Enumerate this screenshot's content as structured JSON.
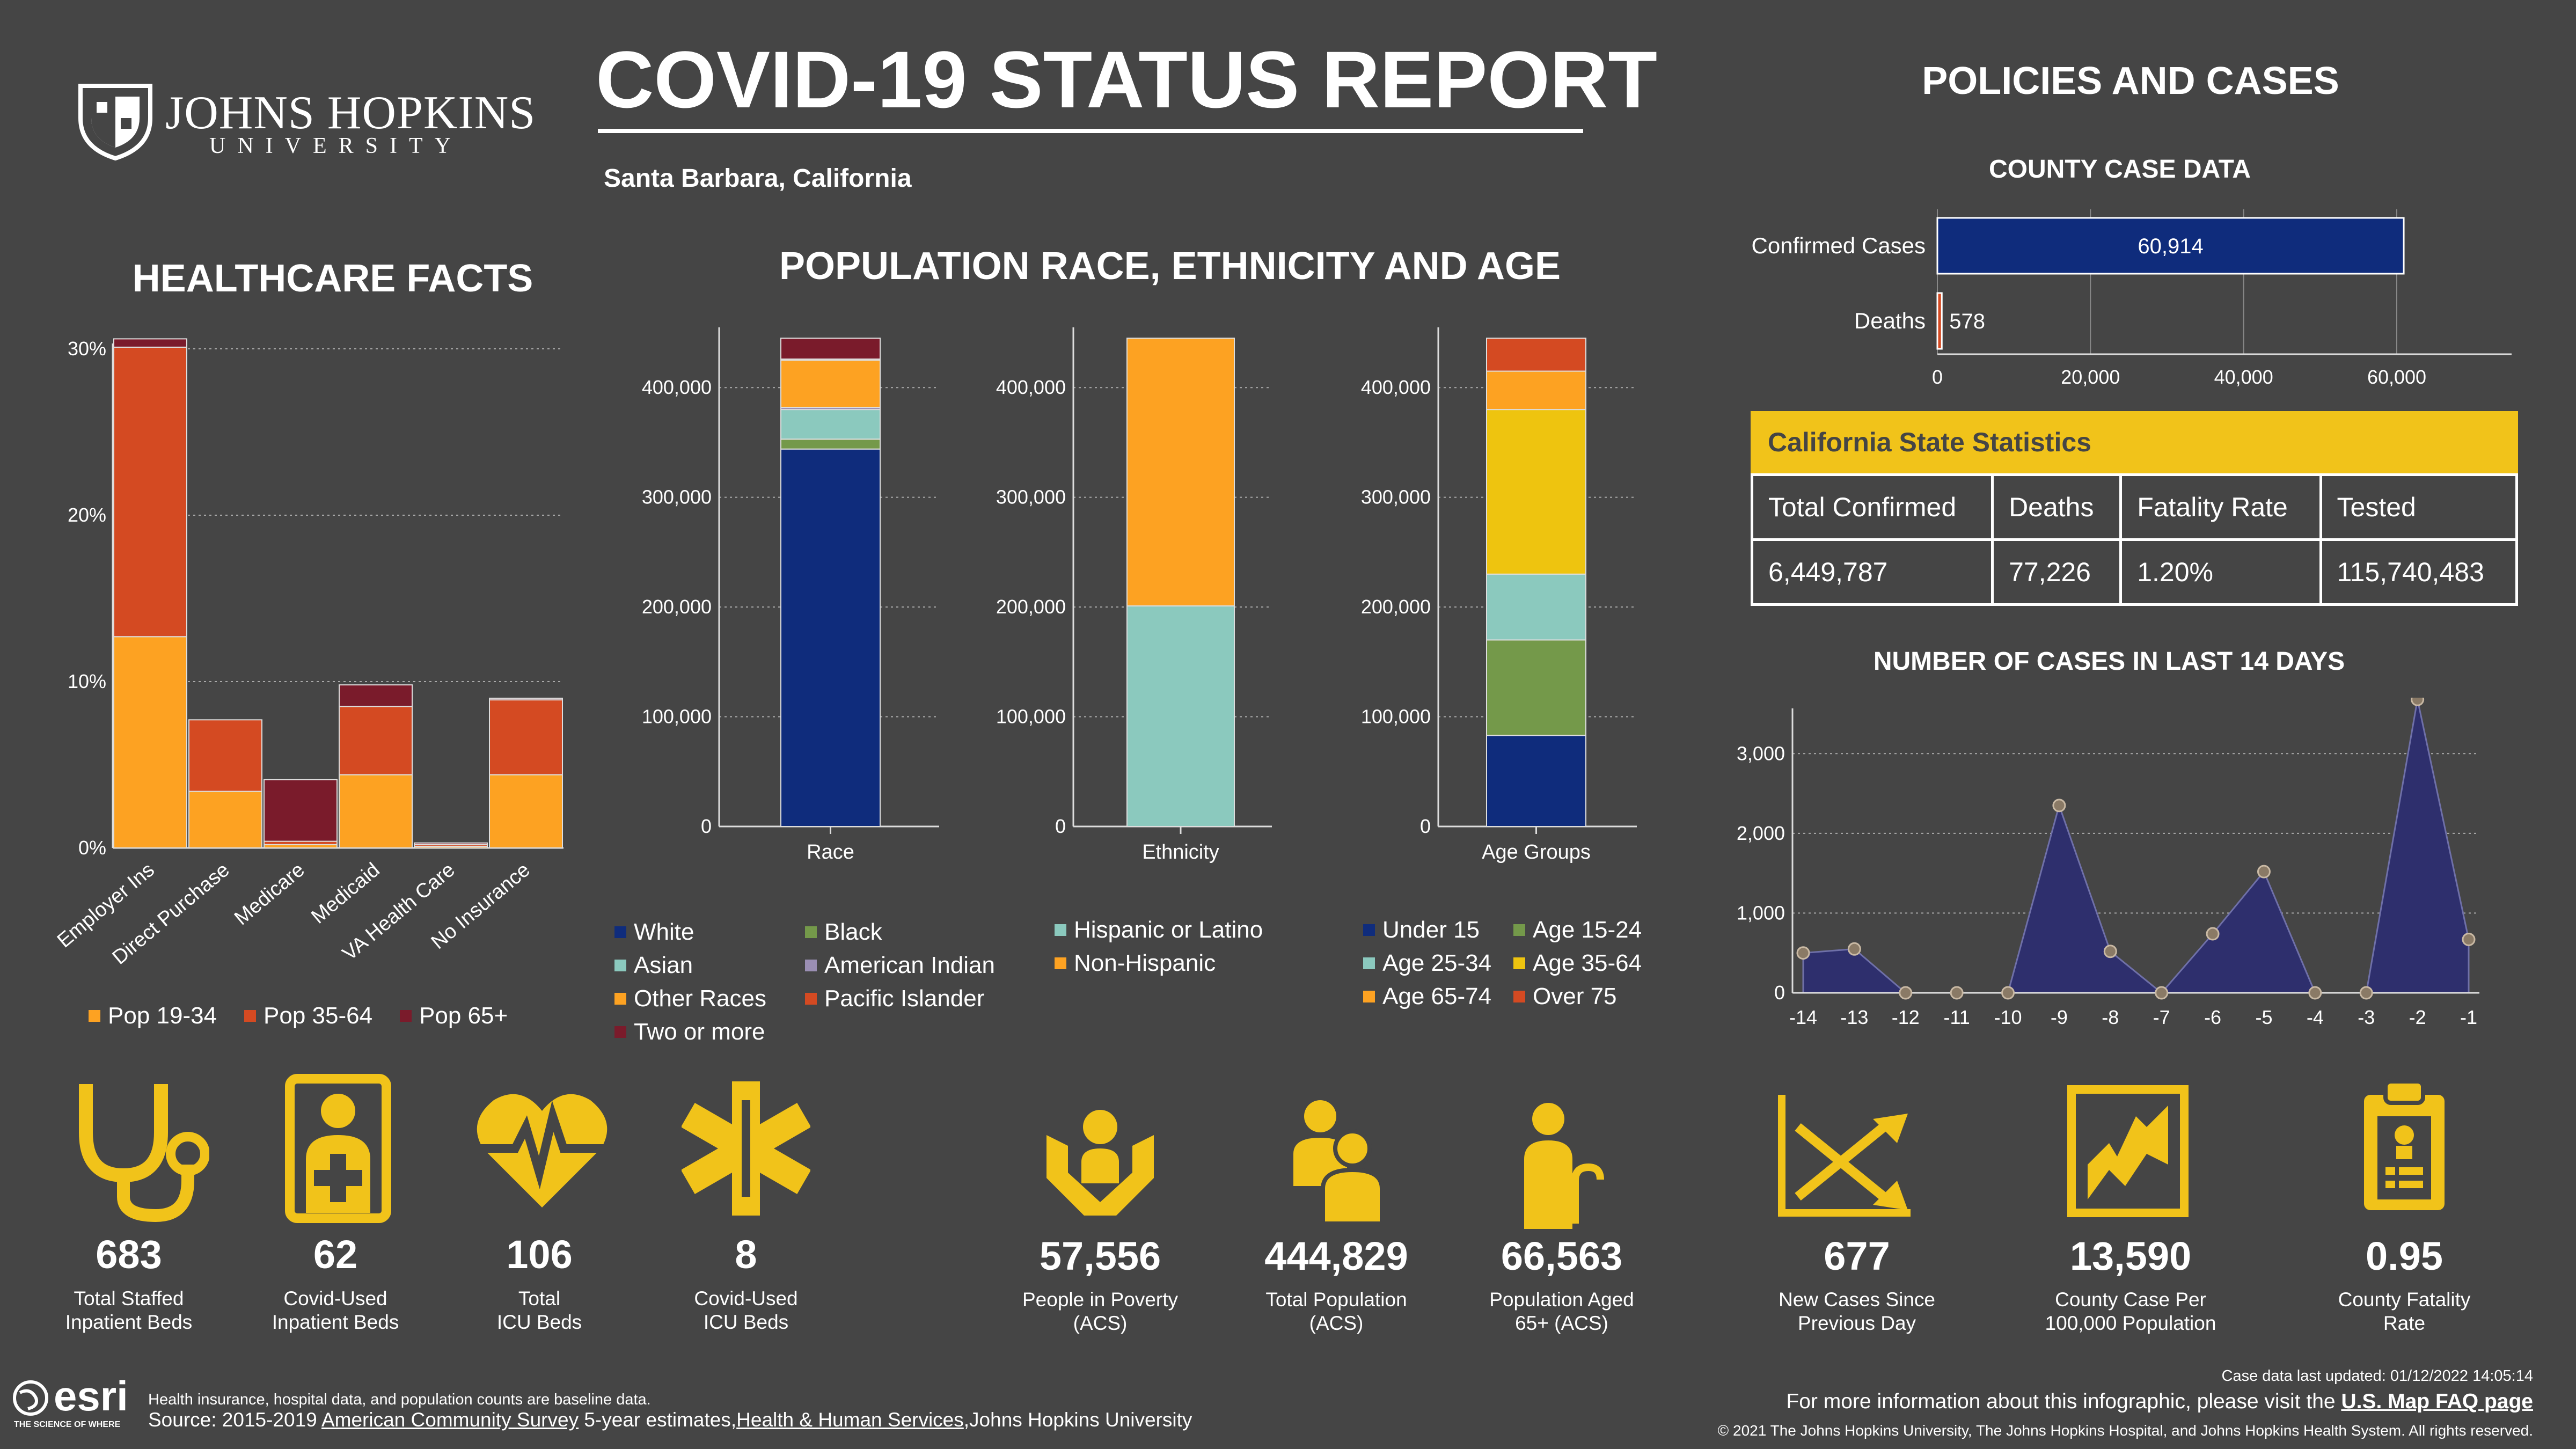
{
  "header": {
    "university_line1": "JOHNS HOPKINS",
    "university_line2": "UNIVERSITY",
    "title": "COVID-19 STATUS REPORT",
    "location": "Santa Barbara, California",
    "policies_title": "POLICIES AND CASES"
  },
  "colors": {
    "background": "#454545",
    "accent": "#f1c31a",
    "navy": "#0f2c7c",
    "orange": "#fda222",
    "red_orange": "#d44a22",
    "maroon": "#7a1b2b",
    "teal": "#8bc9be",
    "green": "#74994a",
    "yellow": "#eec40f",
    "purple": "#9b8fb4",
    "chart_navy": "#2e2f6d"
  },
  "healthcare": {
    "title": "HEALTHCARE FACTS",
    "chart_data": {
      "type": "bar",
      "stacked": true,
      "categories": [
        "Employer Ins",
        "Direct Purchase",
        "Medicare",
        "Medicaid",
        "VA Health Care",
        "No Insurance"
      ],
      "series": [
        {
          "name": "Pop 19-34",
          "color": "#fda222",
          "values": [
            12.7,
            3.4,
            0.2,
            4.4,
            0.1,
            4.4
          ]
        },
        {
          "name": "Pop 35-64",
          "color": "#d44a22",
          "values": [
            17.4,
            4.3,
            0.2,
            4.1,
            0.1,
            4.5
          ]
        },
        {
          "name": "Pop 65+",
          "color": "#7a1b2b",
          "values": [
            0.5,
            0.0,
            3.7,
            1.3,
            0.1,
            0.1
          ]
        }
      ],
      "ylim": [
        0,
        30
      ],
      "yticks": [
        "0%",
        "10%",
        "20%",
        "30%"
      ],
      "grid": true,
      "legend": "bottom"
    }
  },
  "population": {
    "title": "POPULATION RACE, ETHNICITY AND AGE",
    "race": {
      "type": "bar",
      "stacked": true,
      "xlabel": "Race",
      "ylim": [
        0,
        450000
      ],
      "yticks": [
        "0",
        "100,000",
        "200,000",
        "300,000",
        "400,000"
      ],
      "series": [
        {
          "name": "White",
          "color": "#0f2c7c",
          "value": 344000
        },
        {
          "name": "Black",
          "color": "#74994a",
          "value": 9000
        },
        {
          "name": "Asian",
          "color": "#8bc9be",
          "value": 27000
        },
        {
          "name": "American Indian",
          "color": "#9b8fb4",
          "value": 2000
        },
        {
          "name": "Other Races",
          "color": "#fda222",
          "value": 43000
        },
        {
          "name": "Pacific Islander",
          "color": "#d44a22",
          "value": 1000
        },
        {
          "name": "Two or more",
          "color": "#7a1b2b",
          "value": 19000
        }
      ]
    },
    "ethnicity": {
      "type": "bar",
      "stacked": true,
      "xlabel": "Ethnicity",
      "ylim": [
        0,
        450000
      ],
      "yticks": [
        "0",
        "100,000",
        "200,000",
        "300,000",
        "400,000"
      ],
      "series": [
        {
          "name": "Hispanic or Latino",
          "color": "#8bc9be",
          "value": 201000
        },
        {
          "name": "Non-Hispanic",
          "color": "#fda222",
          "value": 244000
        }
      ]
    },
    "age": {
      "type": "bar",
      "stacked": true,
      "xlabel": "Age Groups",
      "ylim": [
        0,
        450000
      ],
      "yticks": [
        "0",
        "100,000",
        "200,000",
        "300,000",
        "400,000"
      ],
      "series": [
        {
          "name": "Under 15",
          "color": "#0f2c7c",
          "value": 83000
        },
        {
          "name": "Age 15-24",
          "color": "#74994a",
          "value": 87000
        },
        {
          "name": "Age 25-34",
          "color": "#8bc9be",
          "value": 60000
        },
        {
          "name": "Age 35-64",
          "color": "#eec40f",
          "value": 150000
        },
        {
          "name": "Age 65-74",
          "color": "#fda222",
          "value": 35000
        },
        {
          "name": "Over 75",
          "color": "#d44a22",
          "value": 30000
        }
      ]
    }
  },
  "county": {
    "title": "COUNTY CASE DATA",
    "chart_data": {
      "type": "bar",
      "orientation": "horizontal",
      "categories": [
        "Confirmed Cases",
        "Deaths"
      ],
      "values": [
        60914,
        578
      ],
      "value_labels": [
        "60,914",
        "578"
      ],
      "colors": [
        "#0f2c7c",
        "#d44a22"
      ],
      "xlim": [
        0,
        75000
      ],
      "xticks": [
        "0",
        "20,000",
        "40,000",
        "60,000"
      ]
    }
  },
  "state": {
    "title": "California State Statistics",
    "headers": [
      "Total Confirmed",
      "Deaths",
      "Fatality Rate",
      "Tested"
    ],
    "values": [
      "6,449,787",
      "77,226",
      "1.20%",
      "115,740,483"
    ]
  },
  "cases14": {
    "title": "NUMBER OF CASES IN LAST 14 DAYS",
    "chart_data": {
      "type": "area",
      "x": [
        -14,
        -13,
        -12,
        -11,
        -10,
        -9,
        -8,
        -7,
        -6,
        -5,
        -4,
        -3,
        -2,
        -1
      ],
      "values": [
        500,
        550,
        0,
        0,
        0,
        2350,
        520,
        0,
        740,
        1520,
        0,
        0,
        3680,
        670
      ],
      "ylim": [
        0,
        3500
      ],
      "yticks": [
        "0",
        "1,000",
        "2,000",
        "3,000"
      ],
      "xticks": [
        "-14",
        "-13",
        "-12",
        "-11",
        "-10",
        "-9",
        "-8",
        "-7",
        "-6",
        "-5",
        "-4",
        "-3",
        "-2",
        "-1"
      ]
    }
  },
  "stats_healthcare": [
    {
      "icon": "stethoscope-icon",
      "value": "683",
      "label1": "Total Staffed",
      "label2": "Inpatient Beds"
    },
    {
      "icon": "medical-kit-icon",
      "value": "62",
      "label1": "Covid-Used",
      "label2": "Inpatient Beds"
    },
    {
      "icon": "heartbeat-icon",
      "value": "106",
      "label1": "Total",
      "label2": "ICU Beds"
    },
    {
      "icon": "star-of-life-icon",
      "value": "8",
      "label1": "Covid-Used",
      "label2": "ICU Beds"
    }
  ],
  "stats_population": [
    {
      "icon": "hands-person-icon",
      "value": "57,556",
      "label1": "People in Poverty",
      "label2": "(ACS)"
    },
    {
      "icon": "people-icon",
      "value": "444,829",
      "label1": "Total Population",
      "label2": "(ACS)"
    },
    {
      "icon": "elderly-person-icon",
      "value": "66,563",
      "label1": "Population Aged",
      "label2": "65+ (ACS)"
    }
  ],
  "stats_cases": [
    {
      "icon": "trend-arrows-icon",
      "value": "677",
      "label1": "New Cases Since",
      "label2": "Previous Day"
    },
    {
      "icon": "county-map-icon",
      "value": "13,590",
      "label1": "County Case Per",
      "label2": "100,000 Population"
    },
    {
      "icon": "clipboard-icon",
      "value": "0.95",
      "label1": "County Fatality",
      "label2": "Rate"
    }
  ],
  "footer": {
    "esri": "esri",
    "esri_tag": "THE SCIENCE OF WHERE",
    "note": "Health insurance, hospital data, and population counts are baseline data.",
    "source_prefix": "Source: 2015-2019 ",
    "source_link1": "American Community Survey",
    "source_mid": " 5-year estimates,",
    "source_link2": "Health & Human Services",
    "source_suffix": ",Johns Hopkins University",
    "updated": "Case data last updated: 01/12/2022 14:05:14",
    "more_info": "For more information about this infographic, please visit the ",
    "faq_link": "U.S. Map FAQ page",
    "copyright": "© 2021 The Johns Hopkins University, The Johns Hopkins Hospital, and Johns Hopkins Health System. All rights reserved."
  }
}
